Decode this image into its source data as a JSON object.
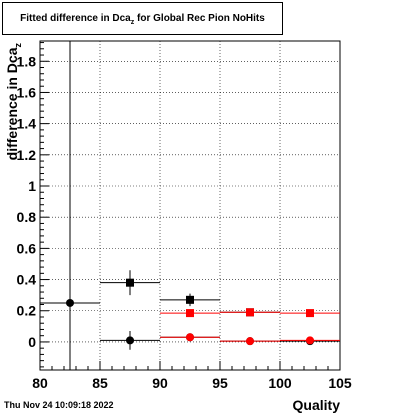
{
  "chart_data": {
    "type": "scatter",
    "title": "Fitted difference in Dca",
    "title_sub": "z",
    "title_suffix": "for Global Rec Pion NoHits",
    "xlabel": "Quality",
    "ylabel": "difference in Dca",
    "ylabel_sub": "z",
    "xlim": [
      80,
      105
    ],
    "ylim": [
      -0.18,
      1.93
    ],
    "x_ticks": [
      80,
      85,
      90,
      95,
      100,
      105
    ],
    "y_ticks": [
      0,
      0.2,
      0.4,
      0.6,
      0.8,
      1,
      1.2,
      1.4,
      1.6,
      1.8
    ],
    "y_tick_labels": [
      "0",
      "0.2",
      "0.4",
      "0.6",
      "0.8",
      "1",
      "1.2",
      "1.4",
      "1.6",
      "1.8"
    ],
    "series": [
      {
        "marker": "circle",
        "color": "#000000",
        "points": [
          {
            "x": 82.5,
            "y": 0.25,
            "xerr": 2.5,
            "yerr": 2.0
          },
          {
            "x": 87.5,
            "y": 0.01,
            "xerr": 2.5,
            "yerr": 0.06
          },
          {
            "x": 92.5,
            "y": 0.03,
            "xerr": 2.5,
            "yerr": 0.02
          },
          {
            "x": 97.5,
            "y": 0.005,
            "xerr": 2.5,
            "yerr": 0.01
          },
          {
            "x": 102.5,
            "y": 0.005,
            "xerr": 2.5,
            "yerr": 0.015
          }
        ]
      },
      {
        "marker": "square",
        "color": "#000000",
        "points": [
          {
            "x": 87.5,
            "y": 0.38,
            "xerr": 2.5,
            "yerr": 0.08
          },
          {
            "x": 92.5,
            "y": 0.27,
            "xerr": 2.5,
            "yerr": 0.04
          },
          {
            "x": 97.5,
            "y": 0.19,
            "xerr": 2.5,
            "yerr": 0.01
          }
        ]
      },
      {
        "marker": "circle",
        "color": "#ff0000",
        "points": [
          {
            "x": 92.5,
            "y": 0.03,
            "xerr": 2.5,
            "yerr": 0.01
          },
          {
            "x": 97.5,
            "y": 0.005,
            "xerr": 2.5,
            "yerr": 0.005
          },
          {
            "x": 102.5,
            "y": 0.01,
            "xerr": 2.5,
            "yerr": 0.005
          }
        ]
      },
      {
        "marker": "square",
        "color": "#ff0000",
        "points": [
          {
            "x": 92.5,
            "y": 0.185,
            "xerr": 2.5,
            "yerr": 0.005
          },
          {
            "x": 97.5,
            "y": 0.19,
            "xerr": 2.5,
            "yerr": 0.005
          },
          {
            "x": 102.5,
            "y": 0.185,
            "xerr": 2.5,
            "yerr": 0.005
          }
        ]
      }
    ],
    "grid": true
  },
  "footer": {
    "date": "Thu Nov 24 10:09:18 2022"
  }
}
